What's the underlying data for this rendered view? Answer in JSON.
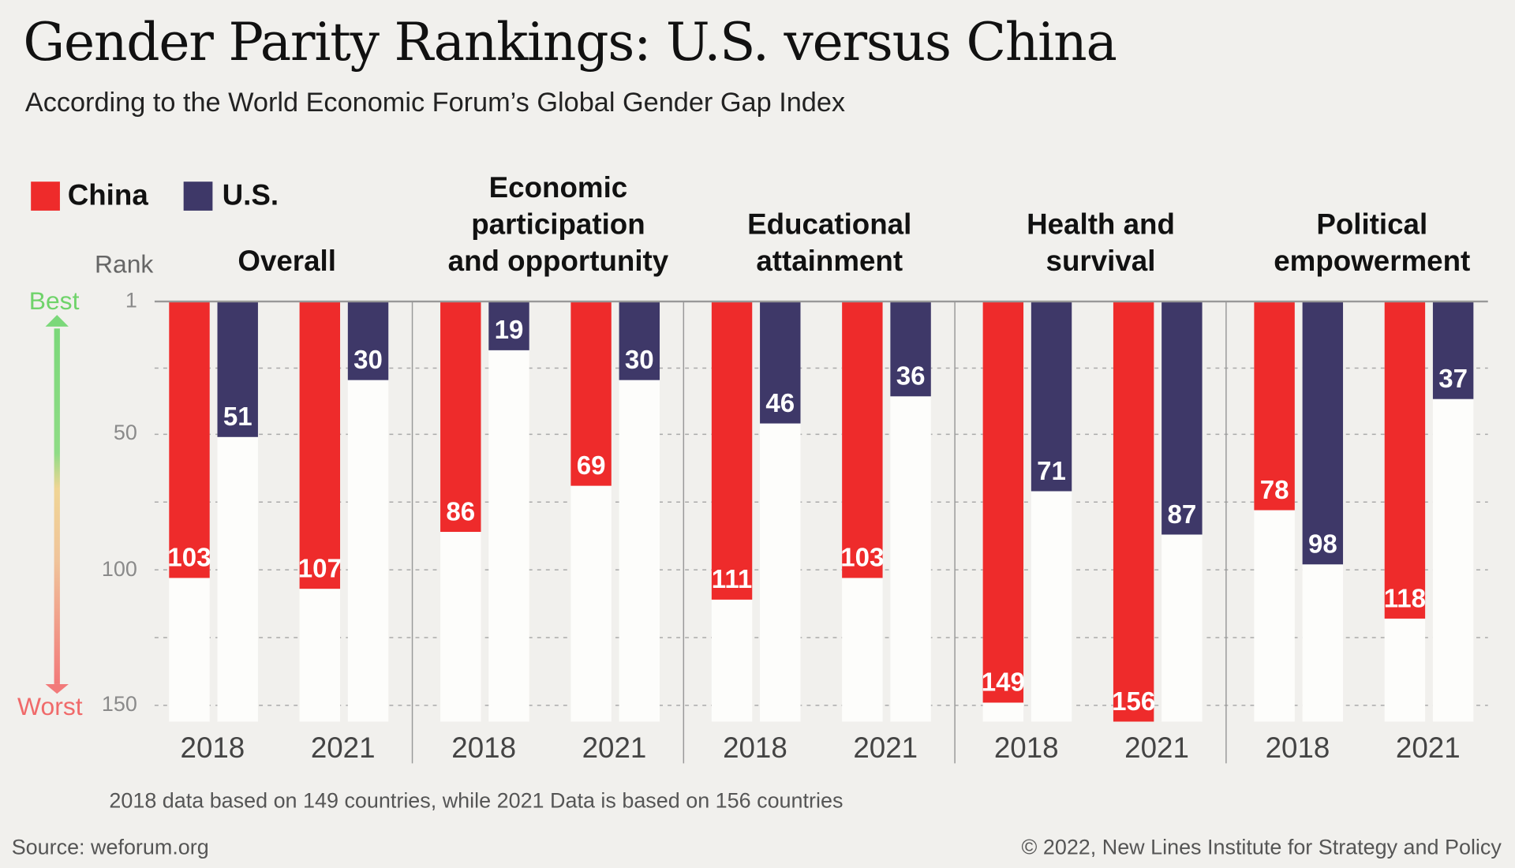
{
  "title": "Gender Parity Rankings: U.S. versus China",
  "subtitle": "According to the World Economic Forum’s Global Gender Gap Index",
  "footnote": "2018 data based on 149 countries, while 2021 Data is based on 156 countries",
  "source": "Source: weforum.org",
  "copyright": "© 2022, New Lines Institute for Strategy and Policy",
  "chart_data": {
    "type": "bar",
    "ylabel": "Rank",
    "y_axis_reversed": true,
    "ylim": [
      1,
      156
    ],
    "yticks": [
      "1",
      "50",
      "100",
      "150"
    ],
    "grid": "dashed horizontal",
    "best_label": "Best",
    "worst_label": "Worst",
    "legend_position": "top-left",
    "series": [
      {
        "name": "China",
        "color": "#ee2b2b"
      },
      {
        "name": "U.S.",
        "color": "#3e3868"
      }
    ],
    "years": [
      "2018",
      "2021"
    ],
    "panels": [
      {
        "title": [
          "Overall"
        ],
        "china": [
          103,
          107
        ],
        "us": [
          51,
          30
        ]
      },
      {
        "title": [
          "Economic",
          "participation",
          "and opportunity"
        ],
        "china": [
          86,
          69
        ],
        "us": [
          19,
          30
        ]
      },
      {
        "title": [
          "Educational",
          "attainment"
        ],
        "china": [
          111,
          103
        ],
        "us": [
          46,
          36
        ]
      },
      {
        "title": [
          "Health and",
          "survival"
        ],
        "china": [
          149,
          156
        ],
        "us": [
          71,
          87
        ]
      },
      {
        "title": [
          "Political",
          "empowerment"
        ],
        "china": [
          78,
          118
        ],
        "us": [
          98,
          37
        ]
      }
    ],
    "country_totals": {
      "2018": 149,
      "2021": 156
    }
  }
}
